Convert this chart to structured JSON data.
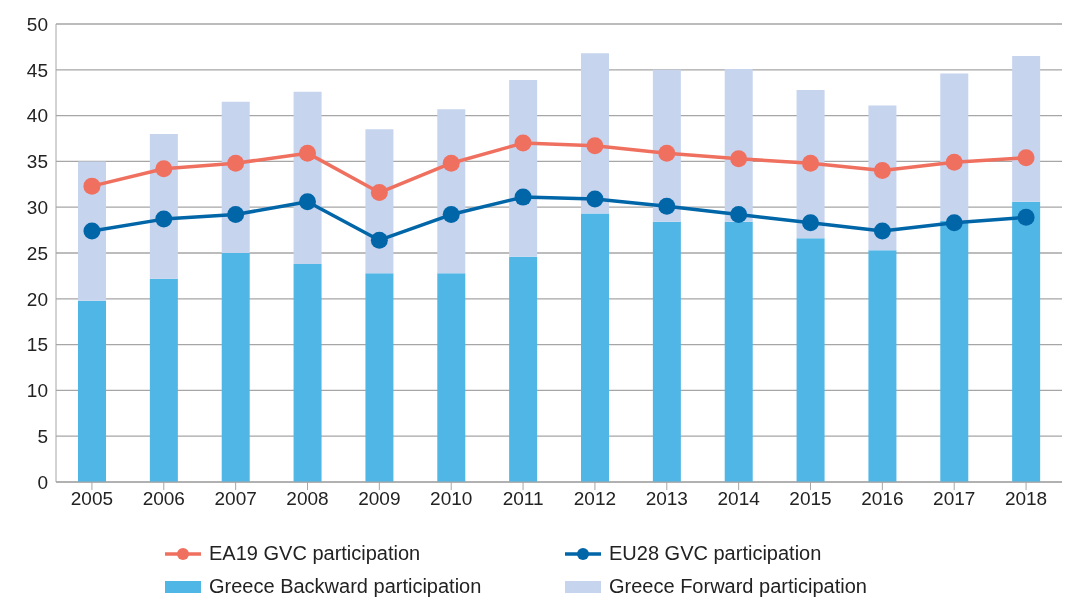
{
  "chart_data": {
    "type": "bar",
    "stacked": true,
    "categories": [
      "2005",
      "2006",
      "2007",
      "2008",
      "2009",
      "2010",
      "2011",
      "2012",
      "2013",
      "2014",
      "2015",
      "2016",
      "2017",
      "2018"
    ],
    "series": [
      {
        "name": "Greece Backward participation",
        "color": "#4fb6e6",
        "values": [
          19.8,
          22.2,
          25.0,
          23.8,
          22.8,
          22.8,
          24.6,
          29.3,
          28.4,
          28.4,
          26.6,
          25.3,
          28.5,
          30.6
        ]
      },
      {
        "name": "Greece Forward participation",
        "color": "#c6d4ee",
        "values": [
          15.2,
          15.8,
          16.5,
          18.8,
          15.7,
          17.9,
          19.3,
          17.5,
          16.6,
          16.7,
          16.2,
          15.8,
          16.1,
          15.9
        ]
      },
      {
        "name": "EA19 GVC participation",
        "type": "line",
        "color": "#f07060",
        "values": [
          32.3,
          34.2,
          34.8,
          35.9,
          31.6,
          34.8,
          37.0,
          36.7,
          35.9,
          35.3,
          34.8,
          34.0,
          34.9,
          35.4
        ]
      },
      {
        "name": "EU28 GVC participation",
        "type": "line",
        "color": "#0066a8",
        "values": [
          27.4,
          28.7,
          29.2,
          30.6,
          26.4,
          29.2,
          31.1,
          30.9,
          30.1,
          29.2,
          28.3,
          27.4,
          28.3,
          28.9
        ]
      }
    ],
    "ylim": [
      0,
      50
    ],
    "yticks": [
      0,
      5,
      10,
      15,
      20,
      25,
      30,
      35,
      40,
      45,
      50
    ],
    "grid": "y",
    "legend": "bottom",
    "marker": "circle"
  }
}
